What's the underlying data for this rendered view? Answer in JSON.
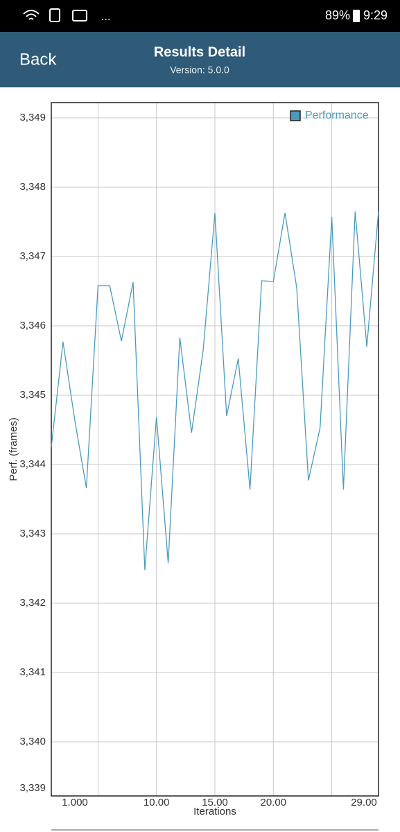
{
  "status_bar": {
    "overflow": "...",
    "battery": "89%",
    "time": "9:29"
  },
  "header": {
    "back": "Back",
    "title": "Results Detail",
    "subtitle": "Version: 5.0.0"
  },
  "chart_data": {
    "type": "line",
    "x_label": "Iterations",
    "y_label": "Perf. (frames)",
    "x": [
      1,
      2,
      3,
      4,
      5,
      6,
      7,
      8,
      9,
      10,
      11,
      12,
      13,
      14,
      15,
      16,
      17,
      18,
      19,
      20,
      21,
      22,
      23,
      24,
      25,
      26,
      27,
      28,
      29
    ],
    "series": [
      {
        "name": "Performance",
        "color": "#4a9bbd",
        "values": [
          3344.25,
          3345.77,
          3344.65,
          3343.66,
          3346.58,
          3346.58,
          3345.78,
          3346.63,
          3342.48,
          3344.69,
          3342.58,
          3345.83,
          3344.46,
          3345.65,
          3347.63,
          3344.7,
          3345.53,
          3343.64,
          3346.65,
          3346.64,
          3347.63,
          3346.55,
          3343.77,
          3344.53,
          3347.57,
          3343.64,
          3347.65,
          3345.7,
          3347.65
        ]
      }
    ],
    "xlim": [
      1,
      29
    ],
    "ylim": [
      3339.22,
      3349.22
    ],
    "xticks": [
      {
        "value": 1,
        "label": "1.000"
      },
      {
        "value": 10,
        "label": "10.00"
      },
      {
        "value": 15,
        "label": "15.00"
      },
      {
        "value": 20,
        "label": "20.00"
      },
      {
        "value": 29,
        "label": "29.00"
      }
    ],
    "xgrid": [
      5,
      10,
      15,
      20,
      25
    ],
    "yticks": [
      {
        "value": 3339,
        "label": "3,339"
      },
      {
        "value": 3340,
        "label": "3,340"
      },
      {
        "value": 3341,
        "label": "3,341"
      },
      {
        "value": 3342,
        "label": "3,342"
      },
      {
        "value": 3343,
        "label": "3,343"
      },
      {
        "value": 3344,
        "label": "3,344"
      },
      {
        "value": 3345,
        "label": "3,345"
      },
      {
        "value": 3346,
        "label": "3,346"
      },
      {
        "value": 3347,
        "label": "3,347"
      },
      {
        "value": 3348,
        "label": "3,348"
      },
      {
        "value": 3349,
        "label": "3,349"
      }
    ],
    "grid": true,
    "legend": "top-right"
  }
}
